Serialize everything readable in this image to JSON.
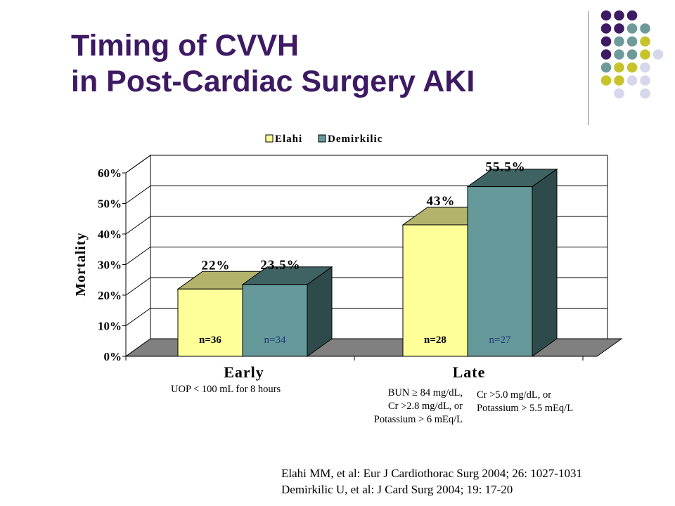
{
  "slide": {
    "title_line1": "Timing of CVVH",
    "title_line2": "in Post-Cardiac Surgery AKI",
    "decor_colors": [
      "#3d1a63",
      "#6f9a9a",
      "#c6c42a",
      "#d7d7ec"
    ]
  },
  "chart_data": {
    "type": "bar",
    "categories": [
      "Early",
      "Late"
    ],
    "series": [
      {
        "name": "Elahi",
        "values": [
          22,
          43
        ],
        "color": "#ffff99",
        "labels": [
          "22%",
          "43%"
        ],
        "n": [
          "n=36",
          "n=28"
        ]
      },
      {
        "name": "Demirkilic",
        "values": [
          23.5,
          55.5
        ],
        "color": "#669999",
        "labels": [
          "23.5%",
          "55.5%"
        ],
        "n": [
          "n=34",
          "n=27"
        ]
      }
    ],
    "ylabel": "Mortality",
    "ylim": [
      0,
      60
    ],
    "yticks": [
      "0%",
      "10%",
      "20%",
      "30%",
      "40%",
      "50%",
      "60%"
    ],
    "legend_position": "top",
    "grid": true
  },
  "notes": {
    "early": "UOP < 100 mL for 8 hours",
    "late_elahi": [
      "BUN ≥ 84 mg/dL,",
      "Cr >2.8 mg/dL, or",
      "Potassium > 6 mEq/L"
    ],
    "late_demirkilic": [
      "Cr >5.0 mg/dL, or",
      "Potassium > 5.5 mEq/L"
    ]
  },
  "citations": [
    "Elahi MM, et al: Eur J Cardiothorac Surg 2004; 26: 1027-1031",
    "Demirkilic U, et al: J Card Surg 2004; 19: 17-20"
  ]
}
